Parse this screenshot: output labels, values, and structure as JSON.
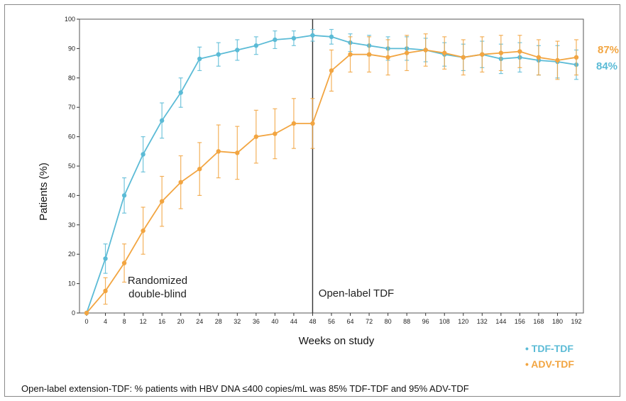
{
  "chart_data": {
    "type": "line",
    "xlabel": "Weeks on study",
    "ylabel": "Patients (%)",
    "ylim": [
      0,
      100
    ],
    "y_ticks": [
      "0",
      "10",
      "20",
      "30",
      "40",
      "50",
      "60",
      "70",
      "80",
      "90",
      "100"
    ],
    "x_tick_labels": [
      "0",
      "4",
      "8",
      "12",
      "16",
      "20",
      "24",
      "28",
      "32",
      "36",
      "40",
      "44",
      "48",
      "56",
      "64",
      "72",
      "80",
      "88",
      "96",
      "108",
      "120",
      "132",
      "144",
      "156",
      "168",
      "180",
      "192"
    ],
    "x_ticks": [
      0,
      4,
      8,
      12,
      16,
      20,
      24,
      28,
      32,
      36,
      40,
      44,
      48,
      56,
      64,
      72,
      80,
      88,
      96,
      108,
      120,
      132,
      144,
      156,
      168,
      180,
      192
    ],
    "grid": false,
    "regions": [
      {
        "label_line1": "Randomized",
        "label_line2": "double-blind"
      },
      {
        "label_line1": "Open-label TDF"
      }
    ],
    "series": [
      {
        "name": "TDF-TDF",
        "color": "#5bbbd6",
        "end_label": "84%",
        "points": [
          {
            "x": 0,
            "y": 0
          },
          {
            "x": 4,
            "y": 18.5,
            "err": 5
          },
          {
            "x": 8,
            "y": 40,
            "err": 6
          },
          {
            "x": 12,
            "y": 54,
            "err": 6
          },
          {
            "x": 16,
            "y": 65.5,
            "err": 6
          },
          {
            "x": 20,
            "y": 75,
            "err": 5
          },
          {
            "x": 24,
            "y": 86.5,
            "err": 4
          },
          {
            "x": 28,
            "y": 88,
            "err": 4
          },
          {
            "x": 32,
            "y": 89.5,
            "err": 3.5
          },
          {
            "x": 36,
            "y": 91,
            "err": 3
          },
          {
            "x": 40,
            "y": 93,
            "err": 3
          },
          {
            "x": 44,
            "y": 93.5,
            "err": 2.5
          },
          {
            "x": 48,
            "y": 94.5,
            "err": 2
          },
          {
            "x": 56,
            "y": 94,
            "err": 2.5
          },
          {
            "x": 64,
            "y": 92,
            "err": 3
          },
          {
            "x": 72,
            "y": 91,
            "err": 3.5
          },
          {
            "x": 80,
            "y": 90,
            "err": 4
          },
          {
            "x": 88,
            "y": 90,
            "err": 4
          },
          {
            "x": 96,
            "y": 89.5,
            "err": 4
          },
          {
            "x": 108,
            "y": 88,
            "err": 4
          },
          {
            "x": 120,
            "y": 87,
            "err": 4.5
          },
          {
            "x": 132,
            "y": 88,
            "err": 4.5
          },
          {
            "x": 144,
            "y": 86.5,
            "err": 5
          },
          {
            "x": 156,
            "y": 87,
            "err": 5
          },
          {
            "x": 168,
            "y": 86,
            "err": 5
          },
          {
            "x": 180,
            "y": 85.5,
            "err": 5.5
          },
          {
            "x": 192,
            "y": 84.5,
            "err": 5
          }
        ]
      },
      {
        "name": "ADV-TDF",
        "color": "#f2a541",
        "end_label": "87%",
        "points": [
          {
            "x": 0,
            "y": 0
          },
          {
            "x": 4,
            "y": 7.5,
            "err": 4.5
          },
          {
            "x": 8,
            "y": 17,
            "err": 6.5
          },
          {
            "x": 12,
            "y": 28,
            "err": 8
          },
          {
            "x": 16,
            "y": 38,
            "err": 8.5
          },
          {
            "x": 20,
            "y": 44.5,
            "err": 9
          },
          {
            "x": 24,
            "y": 49,
            "err": 9
          },
          {
            "x": 28,
            "y": 55,
            "err": 9
          },
          {
            "x": 32,
            "y": 54.5,
            "err": 9
          },
          {
            "x": 36,
            "y": 60,
            "err": 9
          },
          {
            "x": 40,
            "y": 61,
            "err": 8.5
          },
          {
            "x": 44,
            "y": 64.5,
            "err": 8.5
          },
          {
            "x": 48,
            "y": 64.5,
            "err": 8.5
          },
          {
            "x": 56,
            "y": 82.5,
            "err": 7
          },
          {
            "x": 64,
            "y": 88,
            "err": 6
          },
          {
            "x": 72,
            "y": 88,
            "err": 6
          },
          {
            "x": 80,
            "y": 87,
            "err": 6
          },
          {
            "x": 88,
            "y": 88.5,
            "err": 6
          },
          {
            "x": 96,
            "y": 89.5,
            "err": 5.5
          },
          {
            "x": 108,
            "y": 88.5,
            "err": 5.5
          },
          {
            "x": 120,
            "y": 87,
            "err": 6
          },
          {
            "x": 132,
            "y": 88,
            "err": 6
          },
          {
            "x": 144,
            "y": 88.5,
            "err": 6
          },
          {
            "x": 156,
            "y": 89,
            "err": 5.5
          },
          {
            "x": 168,
            "y": 87,
            "err": 6
          },
          {
            "x": 180,
            "y": 86,
            "err": 6.5
          },
          {
            "x": 192,
            "y": 87,
            "err": 6
          }
        ]
      }
    ],
    "legend": [
      {
        "label": "TDF-TDF",
        "color": "#5bbbd6"
      },
      {
        "label": "ADV-TDF",
        "color": "#f2a541"
      }
    ],
    "legend_placement": "bottom-right",
    "footnote": "Open-label extension-TDF: % patients with HBV DNA ≤400 copies/mL was 85% TDF-TDF and 95% ADV-TDF"
  }
}
